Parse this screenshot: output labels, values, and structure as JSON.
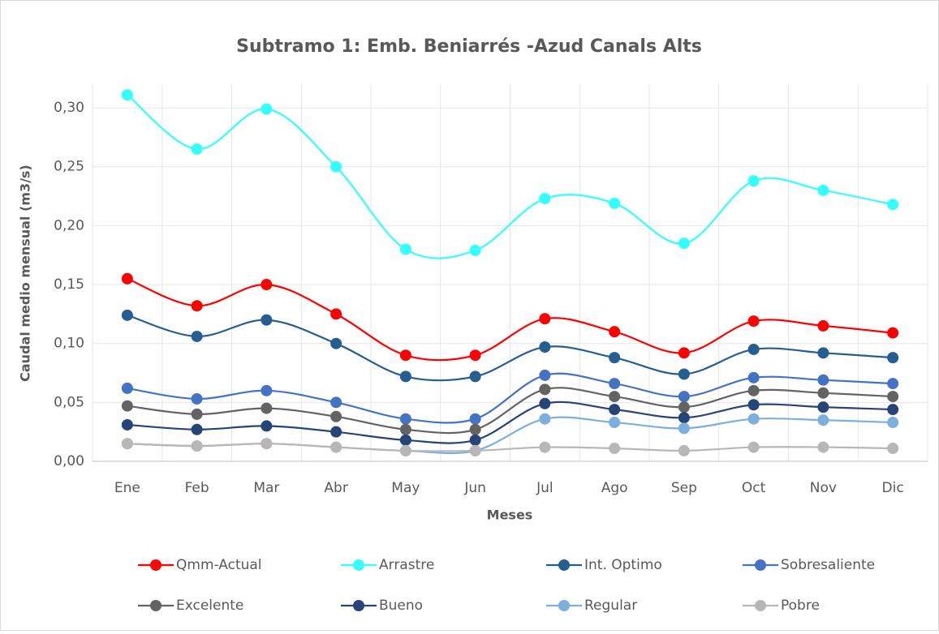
{
  "chart_data": {
    "type": "line",
    "title": "Subtramo 1: Emb. Beniarrés -Azud Canals Alts",
    "x_label": "Meses",
    "y_label": "Caudal medio mensual (m3/s)",
    "categories": [
      "Ene",
      "Feb",
      "Mar",
      "Abr",
      "May",
      "Jun",
      "Jul",
      "Ago",
      "Sep",
      "Oct",
      "Nov",
      "Dic"
    ],
    "series": [
      {
        "name": "Qmm-Actual",
        "color": "#ff0000",
        "values": [
          0.155,
          0.132,
          0.15,
          0.125,
          0.09,
          0.09,
          0.121,
          0.11,
          0.092,
          0.119,
          0.115,
          0.109
        ]
      },
      {
        "name": "Arrastre",
        "color": "#33ffff",
        "values": [
          0.311,
          0.265,
          0.299,
          0.25,
          0.18,
          0.179,
          0.223,
          0.219,
          0.185,
          0.238,
          0.23,
          0.218
        ]
      },
      {
        "name": "Int. Optimo",
        "color": "#255e91",
        "values": [
          0.124,
          0.106,
          0.12,
          0.1,
          0.072,
          0.072,
          0.097,
          0.088,
          0.074,
          0.095,
          0.092,
          0.088
        ]
      },
      {
        "name": "Sobresaliente",
        "color": "#4472c4",
        "values": [
          0.062,
          0.053,
          0.06,
          0.05,
          0.036,
          0.036,
          0.073,
          0.066,
          0.055,
          0.071,
          0.069,
          0.066
        ]
      },
      {
        "name": "Excelente",
        "color": "#636363",
        "values": [
          0.047,
          0.04,
          0.045,
          0.038,
          0.027,
          0.027,
          0.061,
          0.055,
          0.046,
          0.06,
          0.058,
          0.055
        ]
      },
      {
        "name": "Bueno",
        "color": "#264478",
        "values": [
          0.031,
          0.027,
          0.03,
          0.025,
          0.018,
          0.018,
          0.049,
          0.044,
          0.037,
          0.048,
          0.046,
          0.044
        ]
      },
      {
        "name": "Regular",
        "color": "#7cafdd",
        "values": [
          0.015,
          0.013,
          0.015,
          0.012,
          0.009,
          0.009,
          0.036,
          0.033,
          0.028,
          0.036,
          0.035,
          0.033
        ]
      },
      {
        "name": "Pobre",
        "color": "#b7b7b7",
        "values": [
          0.015,
          0.013,
          0.015,
          0.012,
          0.009,
          0.009,
          0.012,
          0.011,
          0.009,
          0.012,
          0.012,
          0.011
        ]
      }
    ],
    "ylim": [
      0,
      0.32
    ],
    "yticks": [
      {
        "value": 0,
        "label": "0,00"
      },
      {
        "value": 0.05,
        "label": "0,05"
      },
      {
        "value": 0.1,
        "label": "0,10"
      },
      {
        "value": 0.15,
        "label": "0,15"
      },
      {
        "value": 0.2,
        "label": "0,20"
      },
      {
        "value": 0.25,
        "label": "0,25"
      },
      {
        "value": 0.3,
        "label": "0,30"
      }
    ],
    "grid": true,
    "smooth": true,
    "legend": "bottom"
  }
}
